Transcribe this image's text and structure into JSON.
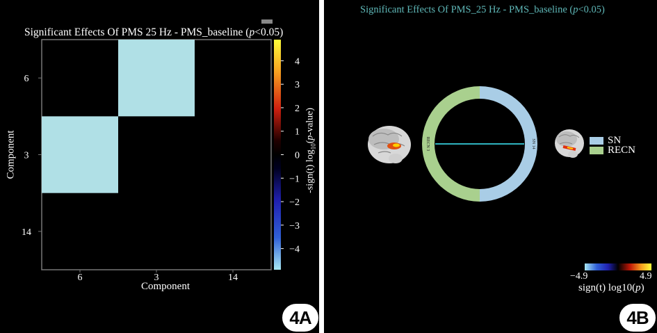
{
  "panelA": {
    "title_prefix": "Significant Effects Of PMS 25 Hz - PMS_baseline (",
    "title_p": "p",
    "title_suffix": "<0.05)",
    "x_axis_label": "Component",
    "y_axis_label": "Component",
    "colorbar_label": "-sign(t) log10(p-value)",
    "colorbar_label_part1": "-sign(t) log",
    "colorbar_label_sub": "10",
    "colorbar_label_part2": "(",
    "colorbar_label_p": "p",
    "colorbar_label_part3": "-value)",
    "badge": "4A",
    "colors": {
      "cell": "#b0e0e6",
      "frame": "#777777"
    }
  },
  "chart_data": [
    {
      "type": "heatmap",
      "title": "Significant Effects Of PMS 25 Hz - PMS_baseline (p<0.05)",
      "xlabel": "Component",
      "ylabel": "Component",
      "x_categories": [
        "6",
        "3",
        "14"
      ],
      "y_categories": [
        "6",
        "3",
        "14"
      ],
      "cells": [
        {
          "x": "3",
          "y": "6",
          "value": -4.9
        },
        {
          "x": "6",
          "y": "3",
          "value": -4.9
        }
      ],
      "colorbar": {
        "label": "-sign(t) log10(p-value)",
        "ticks": [
          "4",
          "3",
          "2",
          "1",
          "0",
          "−1",
          "−2",
          "−3",
          "−4"
        ],
        "tick_values": [
          4,
          3,
          2,
          1,
          0,
          -1,
          -2,
          -3,
          -4
        ],
        "range": [
          -4.9,
          4.9
        ]
      }
    }
  ],
  "panelB": {
    "title_prefix": "Significant Effects Of PMS_25 Hz - PMS_baseline (",
    "title_p": "p",
    "title_suffix": "<0.05)",
    "legend": [
      {
        "label": "SN",
        "color": "#a9cde6"
      },
      {
        "label": "RECN",
        "color": "#a9d08e"
      }
    ],
    "node_left_label": "RECN 3",
    "node_right_label": "SN 14",
    "colorbar_min": "−4.9",
    "colorbar_max": "4.9",
    "colorbar_label_prefix": "sign(t) log10(",
    "colorbar_label_p": "p",
    "colorbar_label_suffix": ")",
    "badge": "4B",
    "colors": {
      "title": "#5fb8b8",
      "ring_sn": "#a9cde6",
      "ring_recn": "#a9d08e",
      "connection": "#2fb3c0"
    }
  }
}
